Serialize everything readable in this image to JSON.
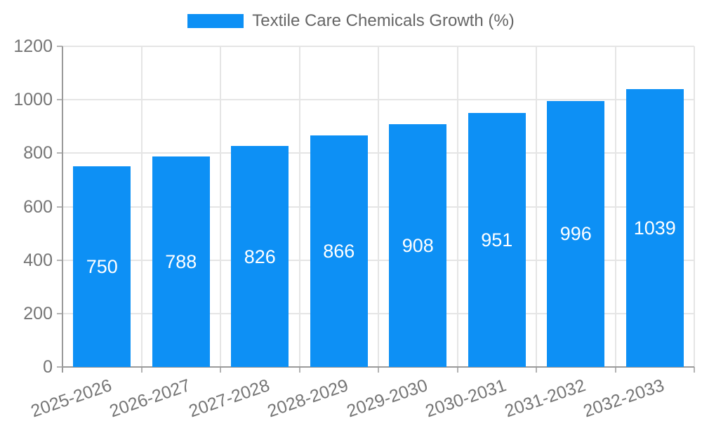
{
  "legend": {
    "label": "Textile Care Chemicals Growth (%)"
  },
  "chart_data": {
    "type": "bar",
    "title": "Textile Care Chemicals Growth (%)",
    "categories": [
      "2025-2026",
      "2026-2027",
      "2027-2028",
      "2028-2029",
      "2029-2030",
      "2030-2031",
      "2031-2032",
      "2032-2033"
    ],
    "values": [
      750,
      788,
      826,
      866,
      908,
      951,
      996,
      1039
    ],
    "value_labels": [
      "750",
      "788",
      "826",
      "866",
      "908",
      "951",
      "996",
      "1039"
    ],
    "xlabel": "",
    "ylabel": "",
    "ylim": [
      0,
      1200
    ],
    "yticks": [
      0,
      200,
      400,
      600,
      800,
      1000,
      1200
    ],
    "ytick_labels": [
      "0",
      "200",
      "400",
      "600",
      "800",
      "1000",
      "1200"
    ],
    "grid": true,
    "legend_position": "top-center",
    "colors": {
      "bar": "#0d90f5",
      "value_label": "#ffffff",
      "tick_label": "#757575",
      "legend_text": "#666666",
      "axis_line": "#9a9a9a",
      "tick_mark": "#b3b3b3",
      "gridline": "#e5e5e5",
      "background": "#ffffff"
    },
    "x_label_rotation_deg": -19
  }
}
